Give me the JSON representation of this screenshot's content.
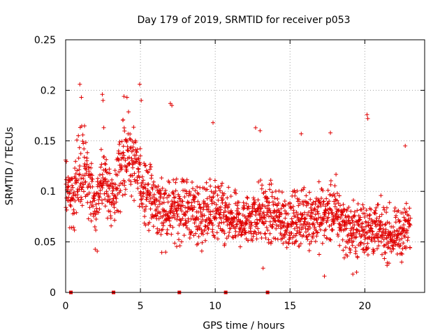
{
  "chart_data": {
    "type": "scatter",
    "title": "Day 179 of 2019, SRMTID for receiver p053",
    "xlabel": "GPS time / hours",
    "ylabel": "SRMTID / TECUs",
    "xlim": [
      0,
      24
    ],
    "ylim": [
      0,
      0.25
    ],
    "x_ticks": [
      0,
      5,
      10,
      15,
      20
    ],
    "x_tick_labels": [
      "0",
      "5",
      "10",
      "15",
      "20"
    ],
    "y_ticks": [
      0,
      0.05,
      0.1,
      0.15,
      0.2,
      0.25
    ],
    "y_tick_labels": [
      "0",
      "0.05",
      "0.1",
      "0.15",
      "0.2",
      "0.25"
    ],
    "grid": true,
    "marker": "+",
    "color": "#e00000",
    "data_gap_markers_x": [
      0.35,
      3.2,
      7.6,
      10.7,
      13.5
    ],
    "trend": [
      {
        "x": 0.0,
        "mean": 0.105,
        "spread": 0.035
      },
      {
        "x": 0.5,
        "mean": 0.09,
        "spread": 0.03
      },
      {
        "x": 1.0,
        "mean": 0.125,
        "spread": 0.04
      },
      {
        "x": 1.5,
        "mean": 0.115,
        "spread": 0.035
      },
      {
        "x": 2.0,
        "mean": 0.075,
        "spread": 0.03
      },
      {
        "x": 2.5,
        "mean": 0.12,
        "spread": 0.04
      },
      {
        "x": 3.0,
        "mean": 0.09,
        "spread": 0.03
      },
      {
        "x": 3.5,
        "mean": 0.11,
        "spread": 0.035
      },
      {
        "x": 4.0,
        "mean": 0.14,
        "spread": 0.035
      },
      {
        "x": 4.5,
        "mean": 0.13,
        "spread": 0.035
      },
      {
        "x": 5.0,
        "mean": 0.11,
        "spread": 0.035
      },
      {
        "x": 5.5,
        "mean": 0.1,
        "spread": 0.03
      },
      {
        "x": 6.0,
        "mean": 0.085,
        "spread": 0.03
      },
      {
        "x": 7.0,
        "mean": 0.08,
        "spread": 0.028
      },
      {
        "x": 8.0,
        "mean": 0.085,
        "spread": 0.03
      },
      {
        "x": 9.0,
        "mean": 0.075,
        "spread": 0.03
      },
      {
        "x": 10.0,
        "mean": 0.08,
        "spread": 0.03
      },
      {
        "x": 11.0,
        "mean": 0.07,
        "spread": 0.025
      },
      {
        "x": 12.0,
        "mean": 0.07,
        "spread": 0.025
      },
      {
        "x": 13.0,
        "mean": 0.08,
        "spread": 0.028
      },
      {
        "x": 14.0,
        "mean": 0.075,
        "spread": 0.028
      },
      {
        "x": 15.0,
        "mean": 0.07,
        "spread": 0.025
      },
      {
        "x": 16.0,
        "mean": 0.075,
        "spread": 0.028
      },
      {
        "x": 17.0,
        "mean": 0.075,
        "spread": 0.03
      },
      {
        "x": 18.0,
        "mean": 0.08,
        "spread": 0.03
      },
      {
        "x": 19.0,
        "mean": 0.06,
        "spread": 0.025
      },
      {
        "x": 20.0,
        "mean": 0.065,
        "spread": 0.028
      },
      {
        "x": 21.0,
        "mean": 0.06,
        "spread": 0.025
      },
      {
        "x": 22.0,
        "mean": 0.055,
        "spread": 0.022
      },
      {
        "x": 23.0,
        "mean": 0.065,
        "spread": 0.025
      }
    ],
    "sample_interval_hours": 0.0125,
    "spike_points": [
      {
        "x": 0.95,
        "y": 0.206
      },
      {
        "x": 1.05,
        "y": 0.193
      },
      {
        "x": 2.45,
        "y": 0.196
      },
      {
        "x": 2.5,
        "y": 0.19
      },
      {
        "x": 3.9,
        "y": 0.194
      },
      {
        "x": 4.1,
        "y": 0.193
      },
      {
        "x": 4.95,
        "y": 0.206
      },
      {
        "x": 5.05,
        "y": 0.19
      },
      {
        "x": 7.0,
        "y": 0.187
      },
      {
        "x": 7.1,
        "y": 0.185
      },
      {
        "x": 9.85,
        "y": 0.168
      },
      {
        "x": 12.7,
        "y": 0.163
      },
      {
        "x": 13.0,
        "y": 0.16
      },
      {
        "x": 15.75,
        "y": 0.157
      },
      {
        "x": 17.7,
        "y": 0.158
      },
      {
        "x": 20.15,
        "y": 0.176
      },
      {
        "x": 20.2,
        "y": 0.172
      },
      {
        "x": 22.7,
        "y": 0.145
      },
      {
        "x": 13.2,
        "y": 0.024
      },
      {
        "x": 17.3,
        "y": 0.016
      },
      {
        "x": 19.2,
        "y": 0.018
      },
      {
        "x": 19.45,
        "y": 0.02
      }
    ]
  }
}
